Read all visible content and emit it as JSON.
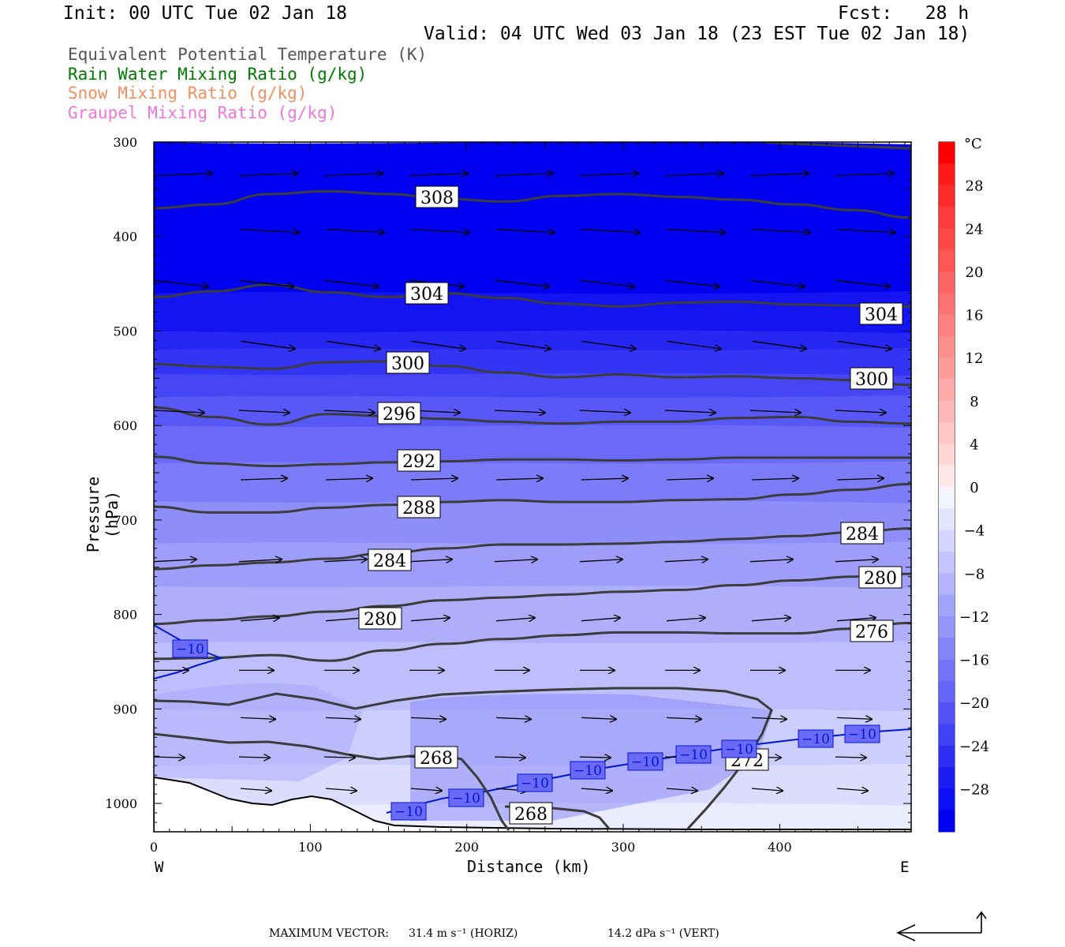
{
  "header": {
    "init": "Init: 00 UTC Tue 02 Jan 18",
    "fcst": "Fcst:   28 h",
    "valid": "Valid: 04 UTC Wed 03 Jan 18 (23 EST Tue 02 Jan 18)"
  },
  "legend": [
    {
      "label": "Equivalent Potential Temperature (K)",
      "color": "#555555"
    },
    {
      "label": "Rain Water Mixing Ratio (g/kg)",
      "color": "#007a00"
    },
    {
      "label": "Snow Mixing Ratio (g/kg)",
      "color": "#f09060"
    },
    {
      "label": "Graupel Mixing Ratio (g/kg)",
      "color": "#ee77dd"
    }
  ],
  "chart_data": {
    "type": "cross-section",
    "xlabel": "Distance (km)",
    "ylabel": "Pressure (hPa)",
    "x_ticks": [
      "0",
      "100",
      "200",
      "300",
      "400"
    ],
    "x_tick_values": [
      0,
      100,
      200,
      300,
      400
    ],
    "xlim": [
      0,
      484
    ],
    "y_ticks": [
      "300",
      "400",
      "500",
      "600",
      "700",
      "800",
      "900",
      "1000"
    ],
    "y_tick_values": [
      300,
      400,
      500,
      600,
      700,
      800,
      900,
      1000
    ],
    "ylim": [
      1030,
      300
    ],
    "west_label": "W",
    "east_label": "E",
    "colorbar": {
      "unit": "°C",
      "tick_labels": [
        "28",
        "24",
        "20",
        "16",
        "12",
        "8",
        "4",
        "0",
        "−4",
        "−8",
        "−12",
        "−16",
        "−20",
        "−24",
        "−28"
      ],
      "tick_values": [
        28,
        24,
        20,
        16,
        12,
        8,
        4,
        0,
        -4,
        -8,
        -12,
        -16,
        -20,
        -24,
        -28
      ],
      "range": [
        -32,
        32
      ]
    },
    "theta_e_contours": [
      {
        "value": 308,
        "label": "308",
        "p": [
          370,
          366,
          355,
          352,
          355,
          360,
          363,
          357,
          355,
          358,
          361,
          366,
          372,
          380
        ]
      },
      {
        "value": 304,
        "label": "304",
        "p": [
          464,
          458,
          451,
          459,
          464,
          460,
          465,
          471,
          474,
          470,
          469,
          472,
          473,
          474
        ]
      },
      {
        "value": 300,
        "label": "300",
        "p": [
          535,
          538,
          540,
          533,
          532,
          537,
          544,
          549,
          546,
          549,
          548,
          550,
          552,
          557
        ]
      },
      {
        "value": 296,
        "label": "296",
        "p": [
          581,
          591,
          599,
          588,
          590,
          593,
          596,
          598,
          596,
          596,
          592,
          591,
          596,
          598
        ]
      },
      {
        "value": 292,
        "label": "292",
        "p": [
          633,
          640,
          643,
          641,
          639,
          638,
          636,
          636,
          637,
          636,
          634,
          634,
          634,
          634
        ]
      },
      {
        "value": 288,
        "label": "288",
        "p": [
          686,
          692,
          692,
          687,
          684,
          681,
          679,
          681,
          681,
          679,
          678,
          673,
          668,
          662
        ]
      },
      {
        "value": 284,
        "label": "284",
        "p": [
          752,
          748,
          745,
          741,
          735,
          730,
          726,
          726,
          725,
          723,
          720,
          717,
          713,
          709
        ]
      },
      {
        "value": 280,
        "label": "280",
        "p": [
          810,
          806,
          802,
          797,
          791,
          785,
          782,
          779,
          776,
          774,
          769,
          764,
          760,
          757
        ]
      },
      {
        "value": 276,
        "label": "276",
        "p": [
          847,
          846,
          843,
          849,
          838,
          831,
          826,
          822,
          819,
          819,
          820,
          820,
          815,
          809
        ]
      }
    ],
    "isotherm_labels": [
      "−10",
      "−10",
      "−10",
      "−10",
      "−10",
      "−10",
      "−10",
      "−10",
      "−10",
      "−10"
    ],
    "extra_contour_labels": [
      "268",
      "268",
      "272"
    ],
    "colors": {
      "plot_deep": "#0000f0",
      "contour": "#3c3c3c",
      "isotherm": "#0018d0"
    }
  },
  "footer": {
    "max_vector_label": "MAXIMUM VECTOR:",
    "horiz": "31.4 m s⁻¹ (HORIZ)",
    "vert": "14.2 dPa s⁻¹ (VERT)"
  }
}
